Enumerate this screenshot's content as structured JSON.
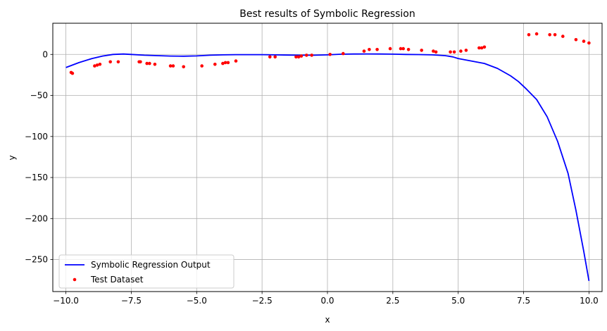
{
  "chart_data": {
    "type": "line",
    "title": "Best results of Symbolic Regression",
    "xlabel": "x",
    "ylabel": "y",
    "xlim": [
      -10.5,
      10.5
    ],
    "ylim": [
      -289,
      38
    ],
    "xticks": [
      -10.0,
      -7.5,
      -5.0,
      -2.5,
      0.0,
      2.5,
      5.0,
      7.5,
      10.0
    ],
    "xtick_labels": [
      "−10.0",
      "−7.5",
      "−5.0",
      "−2.5",
      "0.0",
      "2.5",
      "5.0",
      "7.5",
      "10.0"
    ],
    "yticks": [
      0,
      -50,
      -100,
      -150,
      -200,
      -250
    ],
    "ytick_labels": [
      "0",
      "−50",
      "−100",
      "−150",
      "−200",
      "−250"
    ],
    "grid": true,
    "legend_position": "lower-left",
    "series": [
      {
        "name": "Symbolic Regression Output",
        "kind": "line",
        "color": "#0000ff",
        "x": [
          -10.0,
          -9.5,
          -9.0,
          -8.6,
          -8.2,
          -7.8,
          -7.5,
          -7.0,
          -6.5,
          -6.0,
          -5.5,
          -5.0,
          -4.5,
          -4.0,
          -3.5,
          -3.0,
          -2.5,
          -2.0,
          -1.5,
          -1.0,
          -0.5,
          0.0,
          0.5,
          1.0,
          1.5,
          2.0,
          2.5,
          3.0,
          3.5,
          4.0,
          4.5,
          4.8,
          5.0,
          5.5,
          6.0,
          6.5,
          7.0,
          7.3,
          7.6,
          8.0,
          8.4,
          8.8,
          9.2,
          9.5,
          9.8,
          10.0
        ],
        "y": [
          -16,
          -10,
          -5,
          -2,
          0,
          0.5,
          0,
          -1,
          -1.5,
          -2,
          -2.2,
          -1.8,
          -1,
          -0.5,
          -0.3,
          -0.3,
          -0.3,
          -0.5,
          -0.8,
          -1,
          -1,
          -0.5,
          0.2,
          0.5,
          0.6,
          0.5,
          0.3,
          0,
          -0.2,
          -0.5,
          -1.5,
          -3,
          -5,
          -8,
          -11,
          -17,
          -26,
          -33,
          -42,
          -55,
          -76,
          -106,
          -145,
          -190,
          -240,
          -276
        ]
      },
      {
        "name": "Test Dataset",
        "kind": "scatter",
        "color": "#ff0000",
        "x": [
          -9.8,
          -9.75,
          -8.9,
          -8.8,
          -8.7,
          -8.3,
          -8.0,
          -7.2,
          -7.15,
          -6.9,
          -6.8,
          -6.6,
          -6.0,
          -5.9,
          -5.5,
          -4.8,
          -4.3,
          -4.0,
          -3.9,
          -3.8,
          -3.5,
          -2.2,
          -2.0,
          -1.2,
          -1.1,
          -1.0,
          -0.8,
          -0.6,
          0.1,
          0.6,
          1.4,
          1.6,
          1.9,
          2.4,
          2.8,
          2.9,
          3.1,
          3.6,
          4.05,
          4.15,
          4.7,
          4.85,
          5.1,
          5.3,
          5.8,
          5.9,
          6.0,
          7.7,
          8.0,
          8.5,
          8.7,
          9.0,
          9.5,
          9.8,
          10.0
        ],
        "y": [
          -22,
          -23,
          -14,
          -13,
          -12,
          -9,
          -9,
          -9,
          -9,
          -11,
          -11,
          -12,
          -14,
          -14,
          -15,
          -14,
          -12,
          -11,
          -10,
          -10,
          -8,
          -3,
          -3,
          -3,
          -3,
          -2,
          -1,
          -1,
          0,
          1,
          4,
          6,
          6,
          7,
          7,
          7,
          6,
          5,
          4,
          3,
          3,
          3,
          4,
          5,
          8,
          8,
          9,
          24,
          25,
          24,
          24,
          22,
          18,
          16,
          14
        ]
      }
    ]
  }
}
